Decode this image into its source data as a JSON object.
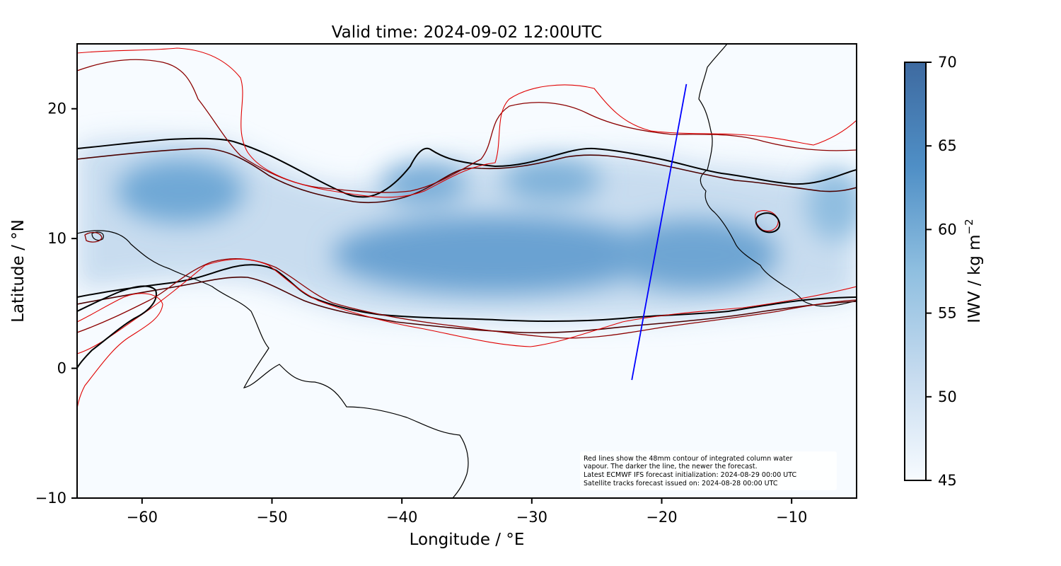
{
  "figure": {
    "title": "Valid time: 2024-09-02 12:00UTC",
    "xlabel": "Longitude / °E",
    "ylabel": "Latitude / °N",
    "colorbar_label": "IWV / kg m",
    "colorbar_label_sup": "−2",
    "note_lines": [
      "Red lines show the 48mm contour of integrated column water",
      "vapour. The darker the line, the newer the forecast.",
      "Latest ECMWF IFS forecast initialization: 2024-08-29 00:00 UTC",
      "Satellite tracks forecast issued on: 2024-08-28 00:00 UTC"
    ]
  },
  "chart_data": {
    "type": "heatmap",
    "title": "Valid time: 2024-09-02 12:00UTC",
    "xlabel": "Longitude / °E",
    "ylabel": "Latitude / °N",
    "xlim": [
      -65,
      -5
    ],
    "ylim": [
      -10,
      25
    ],
    "xticks": [
      -60,
      -50,
      -40,
      -30,
      -20,
      -10
    ],
    "xtick_labels": [
      "−60",
      "−50",
      "−40",
      "−30",
      "−20",
      "−10"
    ],
    "yticks": [
      -10,
      0,
      10,
      20
    ],
    "ytick_labels": [
      "−10",
      "0",
      "10",
      "20"
    ],
    "colorbar": {
      "label": "IWV / kg m−2",
      "range": [
        45,
        70
      ],
      "ticks": [
        45,
        50,
        55,
        60,
        65,
        70
      ],
      "tick_labels": [
        "45",
        "50",
        "55",
        "60",
        "65",
        "70"
      ],
      "colormap": "Blues",
      "colors": [
        "#f7fbff",
        "#c6dbef",
        "#6baed6",
        "#2171b5",
        "#08306b"
      ]
    },
    "iwv_field_peaks": [
      {
        "lon": -56.5,
        "lat": 13.5,
        "iwv": 62
      },
      {
        "lon": -38,
        "lat": 12.5,
        "iwv": 60
      },
      {
        "lon": -28,
        "lat": 13.5,
        "iwv": 59
      },
      {
        "lon": -33,
        "lat": 8,
        "iwv": 63
      },
      {
        "lon": -20,
        "lat": 8.5,
        "iwv": 61
      },
      {
        "lon": -12,
        "lat": 9,
        "iwv": 60
      }
    ],
    "contour_48mm_newest": [
      [
        -65,
        17.5
      ],
      [
        -60,
        17.5
      ],
      [
        -55,
        17.6
      ],
      [
        -52,
        17
      ],
      [
        -48,
        14.5
      ],
      [
        -45,
        13
      ],
      [
        -43,
        13.5
      ],
      [
        -40,
        15
      ],
      [
        -38,
        16.5
      ],
      [
        -35,
        16
      ],
      [
        -30,
        15.8
      ],
      [
        -26,
        17.2
      ],
      [
        -22,
        16.5
      ],
      [
        -18,
        15.8
      ],
      [
        -13,
        14.5
      ],
      [
        -10,
        14
      ],
      [
        -7,
        14.5
      ],
      [
        -5,
        15
      ]
    ],
    "contour_48mm_south": [
      [
        -65,
        5.5
      ],
      [
        -60,
        6
      ],
      [
        -55,
        7.5
      ],
      [
        -52,
        7.8
      ],
      [
        -50,
        7
      ],
      [
        -48,
        5
      ],
      [
        -45,
        4
      ],
      [
        -40,
        3.5
      ],
      [
        -35,
        3.5
      ],
      [
        -30,
        3.5
      ],
      [
        -25,
        3.8
      ],
      [
        -20,
        4
      ],
      [
        -15,
        4.5
      ],
      [
        -10,
        5
      ],
      [
        -8,
        5.2
      ],
      [
        -5,
        5.3
      ]
    ],
    "satellite_track": {
      "color": "#0000ff",
      "points": [
        {
          "lon": -22.3,
          "lat": -0.9
        },
        {
          "lon": -18.1,
          "lat": 21.9
        }
      ]
    },
    "contour_colors": [
      "#000000",
      "#3a0000",
      "#7a0000",
      "#c00000",
      "#ff0000"
    ]
  }
}
